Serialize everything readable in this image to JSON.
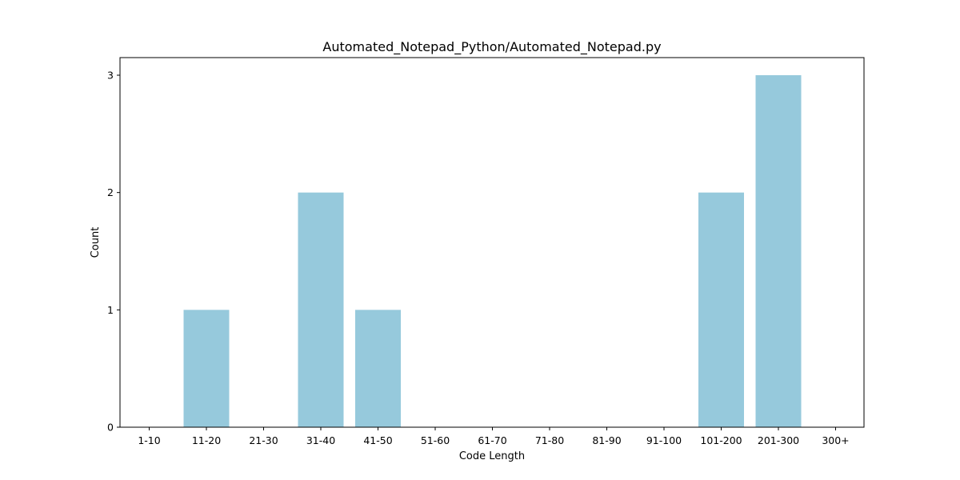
{
  "chart_data": {
    "type": "bar",
    "title": "Automated_Notepad_Python/Automated_Notepad.py",
    "xlabel": "Code Length",
    "ylabel": "Count",
    "categories": [
      "1-10",
      "11-20",
      "21-30",
      "31-40",
      "41-50",
      "51-60",
      "61-70",
      "71-80",
      "81-90",
      "91-100",
      "101-200",
      "201-300",
      "300+"
    ],
    "values": [
      0,
      1,
      0,
      2,
      1,
      0,
      0,
      0,
      0,
      0,
      2,
      3,
      0
    ],
    "ylim": [
      0,
      3.15
    ],
    "yticks": [
      0,
      1,
      2,
      3
    ],
    "grid": false,
    "bar_color": "#96c9dc"
  }
}
